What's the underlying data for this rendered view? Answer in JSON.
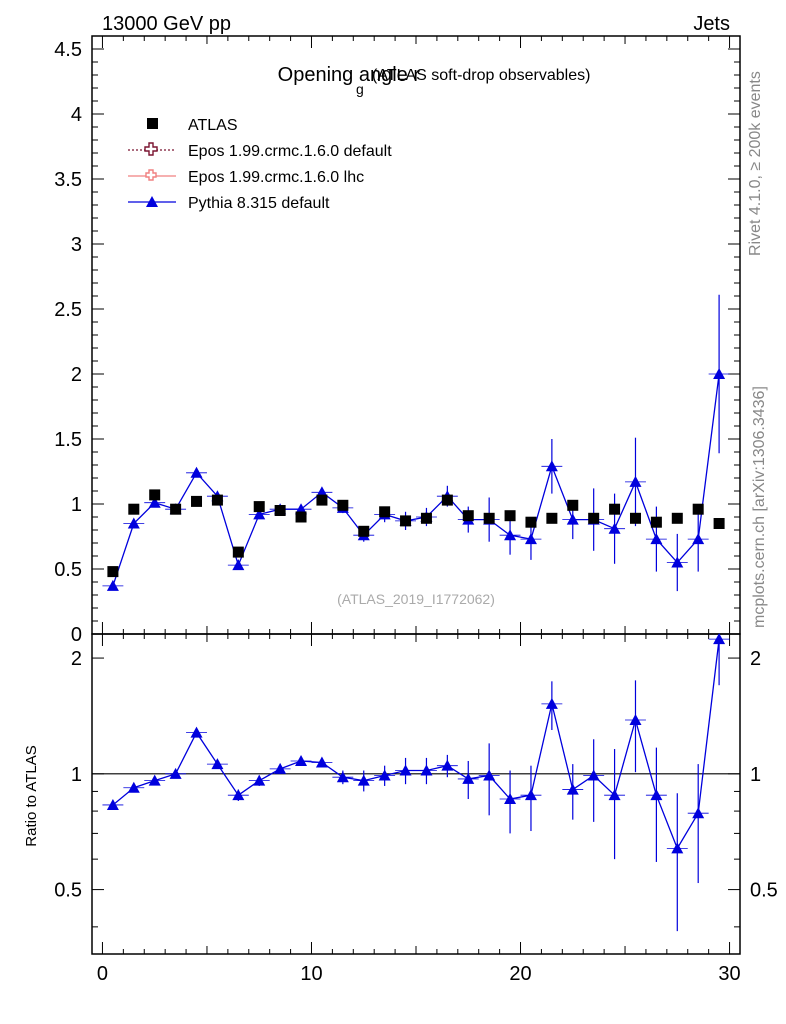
{
  "header": {
    "left": "13000 GeV pp",
    "right": "Jets"
  },
  "side_labels": {
    "rivet": "Rivet 4.1.0, ≥ 200k events",
    "mcplots": "mcplots.cern.ch [arXiv:1306.3436]"
  },
  "chart_data": {
    "type": "scatter",
    "title": "Opening angle r",
    "title_sub": "g",
    "title_suffix": "(ATLAS soft-drop observables)",
    "watermark": "(ATLAS_2019_I1772062)",
    "xlim": [
      -0.5,
      30.5
    ],
    "x_ticks": [
      "0",
      "10",
      "20",
      "30"
    ],
    "main": {
      "ylim": [
        0,
        4.6
      ],
      "y_ticks": [
        "0",
        "0.5",
        "1",
        "1.5",
        "2",
        "2.5",
        "3",
        "3.5",
        "4",
        "4.5"
      ],
      "ylabel": ""
    },
    "ratio": {
      "ylabel": "Ratio to ATLAS",
      "ylim": [
        0.34,
        2.31
      ],
      "y_ticks": [
        "0.5",
        "1",
        "2"
      ],
      "reference": 1
    },
    "legend": [
      {
        "label": "ATLAS",
        "color": "#000000",
        "style": "square"
      },
      {
        "label": "Epos 1.99.crmc.1.6.0 default",
        "color": "#7a1430",
        "style": "dotted-cross"
      },
      {
        "label": "Epos 1.99.crmc.1.6.0 lhc",
        "color": "#f08080",
        "style": "solid-cross"
      },
      {
        "label": "Pythia 8.315 default",
        "color": "#0000dd",
        "style": "triangle"
      }
    ],
    "x": [
      0.5,
      1.5,
      2.5,
      3.5,
      4.5,
      5.5,
      6.5,
      7.5,
      8.5,
      9.5,
      10.5,
      11.5,
      12.5,
      13.5,
      14.5,
      15.5,
      16.5,
      17.5,
      18.5,
      19.5,
      20.5,
      21.5,
      22.5,
      23.5,
      24.5,
      25.5,
      26.5,
      27.5,
      28.5,
      29.5
    ],
    "series": [
      {
        "name": "ATLAS",
        "values": [
          0.48,
          0.96,
          1.07,
          0.96,
          1.02,
          1.03,
          0.63,
          0.98,
          0.95,
          0.9,
          1.03,
          0.99,
          0.79,
          0.94,
          0.87,
          0.89,
          1.03,
          0.91,
          0.89,
          0.91,
          0.86,
          0.89,
          0.99,
          0.89,
          0.96,
          0.89,
          0.86,
          0.89,
          0.96,
          0.85
        ]
      },
      {
        "name": "Pythia 8.315 default",
        "values": [
          0.37,
          0.85,
          1.01,
          0.96,
          1.24,
          1.06,
          0.53,
          0.92,
          0.96,
          0.96,
          1.09,
          0.97,
          0.76,
          0.92,
          0.87,
          0.9,
          1.06,
          0.88,
          0.88,
          0.76,
          0.73,
          1.29,
          0.88,
          0.88,
          0.81,
          1.17,
          0.73,
          0.55,
          0.73,
          2.0
        ],
        "errors": [
          0.02,
          0.02,
          0.02,
          0.02,
          0.02,
          0.02,
          0.03,
          0.03,
          0.03,
          0.03,
          0.03,
          0.04,
          0.05,
          0.06,
          0.07,
          0.07,
          0.08,
          0.1,
          0.17,
          0.15,
          0.16,
          0.21,
          0.15,
          0.24,
          0.27,
          0.34,
          0.25,
          0.22,
          0.25,
          0.61
        ]
      }
    ],
    "ratio_series": {
      "name": "Pythia 8.315 default / ATLAS",
      "values": [
        0.83,
        0.92,
        0.96,
        1.0,
        1.28,
        1.06,
        0.88,
        0.96,
        1.03,
        1.08,
        1.07,
        0.98,
        0.96,
        0.99,
        1.02,
        1.02,
        1.05,
        0.97,
        0.99,
        0.86,
        0.88,
        1.52,
        0.91,
        0.99,
        0.88,
        1.38,
        0.88,
        0.64,
        0.79,
        2.24
      ],
      "errors": [
        0.02,
        0.02,
        0.02,
        0.02,
        0.03,
        0.02,
        0.03,
        0.03,
        0.03,
        0.03,
        0.03,
        0.04,
        0.06,
        0.06,
        0.08,
        0.08,
        0.07,
        0.11,
        0.21,
        0.16,
        0.17,
        0.22,
        0.15,
        0.24,
        0.28,
        0.37,
        0.29,
        0.25,
        0.27,
        0.54
      ]
    }
  }
}
